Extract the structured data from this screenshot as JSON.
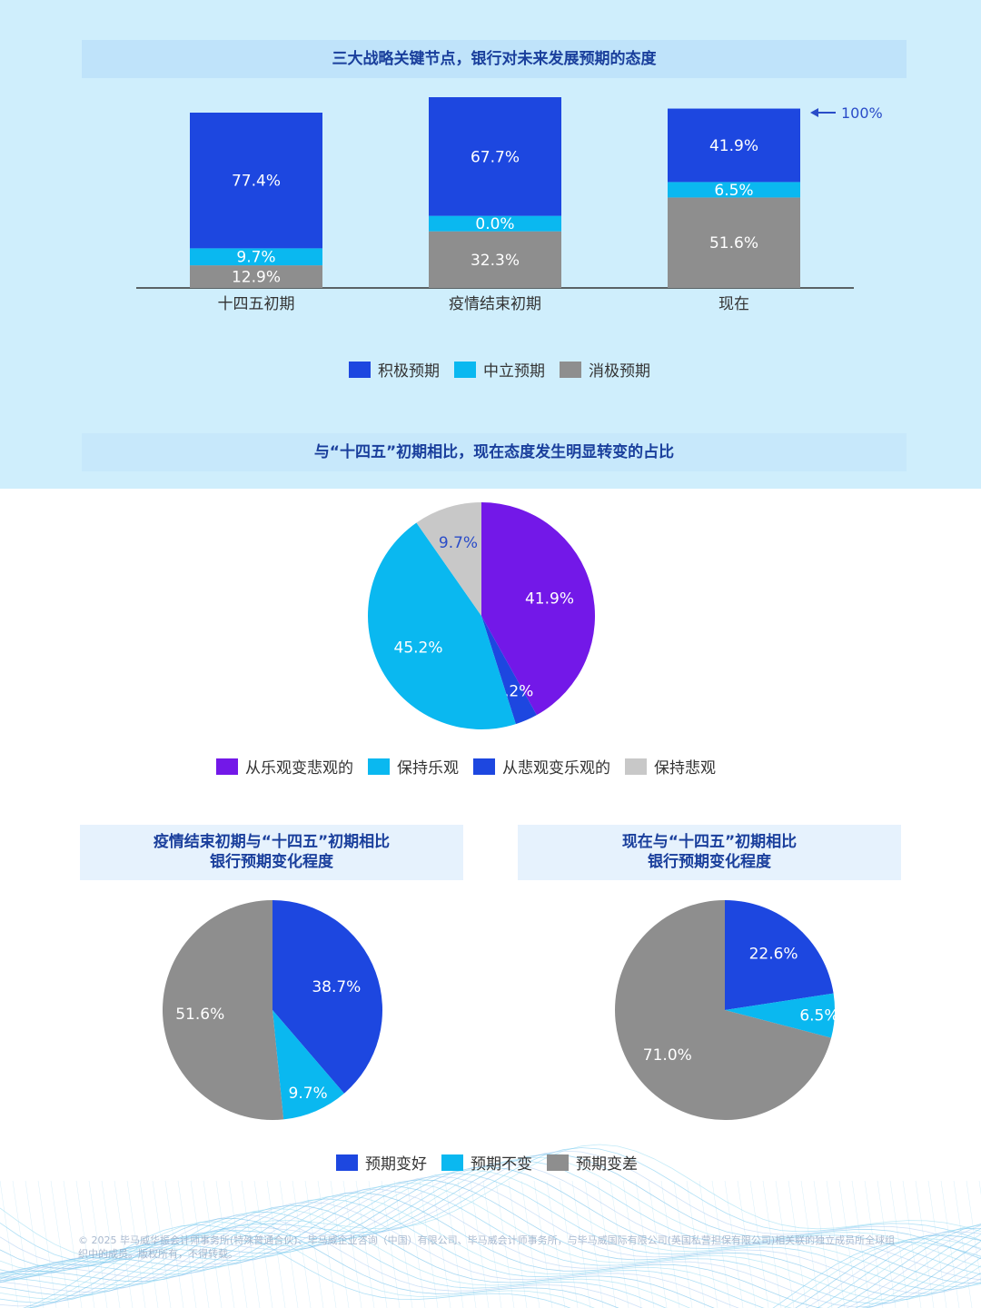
{
  "colors": {
    "positive": "#1d47e0",
    "neutral": "#0ab8f0",
    "negative": "#8e8e8e",
    "purple": "#7318e8",
    "light_gray": "#c8c8c8"
  },
  "titles": {
    "chart1": "三大战略关键节点，银行对未来发展预期的态度",
    "chart2": "与“十四五”初期相比，现在态度发生明显转变的占比",
    "chart3_line1": "疫情结束初期与“十四五”初期相比",
    "chart3_line2": "银行预期变化程度",
    "chart4_line1": "现在与“十四五”初期相比",
    "chart4_line2": "银行预期变化程度"
  },
  "annotation_100": "100%",
  "legend1": [
    "积极预期",
    "中立预期",
    "消极预期"
  ],
  "legend2": [
    "从乐观变悲观的",
    "保持乐观",
    "从悲观变乐观的",
    "保持悲观"
  ],
  "legend3": [
    "预期变好",
    "预期不变",
    "预期变差"
  ],
  "footer": "© 2025 毕马威华振会计师事务所(特殊普通合伙)、毕马威企业咨询（中国）有限公司、毕马威会计师事务所，与毕马威国际有限公司(英国私营担保有限公司)相关联的独立成员所全球组织中的成员。版权所有，不得转载。",
  "chart_data": [
    {
      "type": "bar",
      "stacked": true,
      "title": "三大战略关键节点，银行对未来发展预期的态度",
      "categories": [
        "十四五初期",
        "疫情结束初期",
        "现在"
      ],
      "series": [
        {
          "name": "积极预期",
          "values": [
            77.4,
            67.7,
            41.9
          ],
          "labels": [
            "77.4%",
            "67.7%",
            "41.9%"
          ]
        },
        {
          "name": "中立预期",
          "values": [
            9.7,
            0.0,
            6.5
          ],
          "labels": [
            "9.7%",
            "0.0%",
            "6.5%"
          ]
        },
        {
          "name": "消极预期",
          "values": [
            12.9,
            32.3,
            51.6
          ],
          "labels": [
            "12.9%",
            "32.3%",
            "51.6%"
          ]
        }
      ],
      "ylim": [
        0,
        100
      ]
    },
    {
      "type": "pie",
      "title": "与“十四五”初期相比，现在态度发生明显转变的占比",
      "slices": [
        {
          "name": "从乐观变悲观的",
          "value": 41.9,
          "label": "41.9%"
        },
        {
          "name": "从悲观变乐观的",
          "value": 3.2,
          "label": "3.2%"
        },
        {
          "name": "保持乐观",
          "value": 45.2,
          "label": "45.2%"
        },
        {
          "name": "保持悲观",
          "value": 9.7,
          "label": "9.7%"
        }
      ]
    },
    {
      "type": "pie",
      "title": "疫情结束初期与“十四五”初期相比 银行预期变化程度",
      "slices": [
        {
          "name": "预期变好",
          "value": 38.7,
          "label": "38.7%"
        },
        {
          "name": "预期不变",
          "value": 9.7,
          "label": "9.7%"
        },
        {
          "name": "预期变差",
          "value": 51.6,
          "label": "51.6%"
        }
      ]
    },
    {
      "type": "pie",
      "title": "现在与“十四五”初期相比 银行预期变化程度",
      "slices": [
        {
          "name": "预期变好",
          "value": 22.6,
          "label": "22.6%"
        },
        {
          "name": "预期不变",
          "value": 6.5,
          "label": "6.5%"
        },
        {
          "name": "预期变差",
          "value": 71.0,
          "label": "71.0%"
        }
      ]
    }
  ]
}
